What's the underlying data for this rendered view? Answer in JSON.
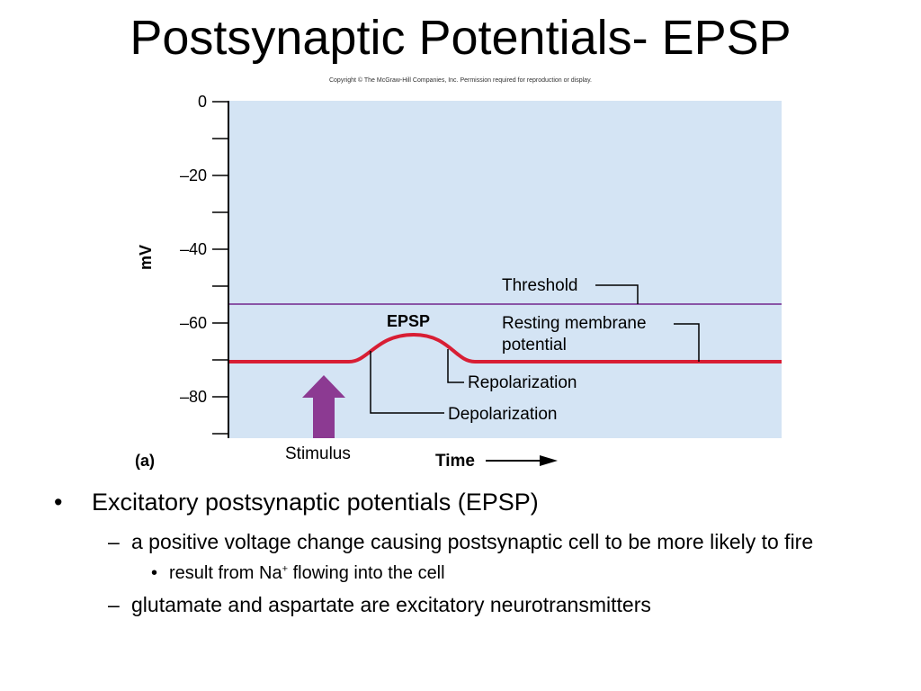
{
  "slide": {
    "title": "Postsynaptic Potentials- EPSP",
    "copyright": "Copyright © The McGraw-Hill Companies, Inc. Permission required for reproduction or display."
  },
  "figure": {
    "y_axis_label": "mV",
    "y_ticks": [
      "0",
      "–20",
      "–40",
      "–60",
      "–80"
    ],
    "x_axis_label": "Time",
    "panel_label": "(a)",
    "labels": {
      "threshold": "Threshold",
      "epsp": "EPSP",
      "resting_line1": "Resting membrane",
      "resting_line2": "potential",
      "repolarization": "Repolarization",
      "depolarization": "Depolarization",
      "stimulus": "Stimulus"
    },
    "threshold_mv": -55,
    "resting_mv": -70,
    "peak_mv": -62,
    "colors": {
      "background": "#d4e4f4",
      "threshold_line": "#8a55a6",
      "membrane_trace": "#d81e34",
      "stimulus_arrow": "#8c3a92"
    }
  },
  "bullets": {
    "b1": "Excitatory postsynaptic potentials (EPSP)",
    "b2a": "a positive voltage change causing postsynaptic cell to be more likely to fire",
    "b3_pre": "result from Na",
    "b3_sup": "+",
    "b3_post": " flowing into the cell",
    "b2b": "glutamate and aspartate are excitatory neurotransmitters",
    "marker_1": "•",
    "marker_2": "–",
    "marker_3": "•"
  }
}
